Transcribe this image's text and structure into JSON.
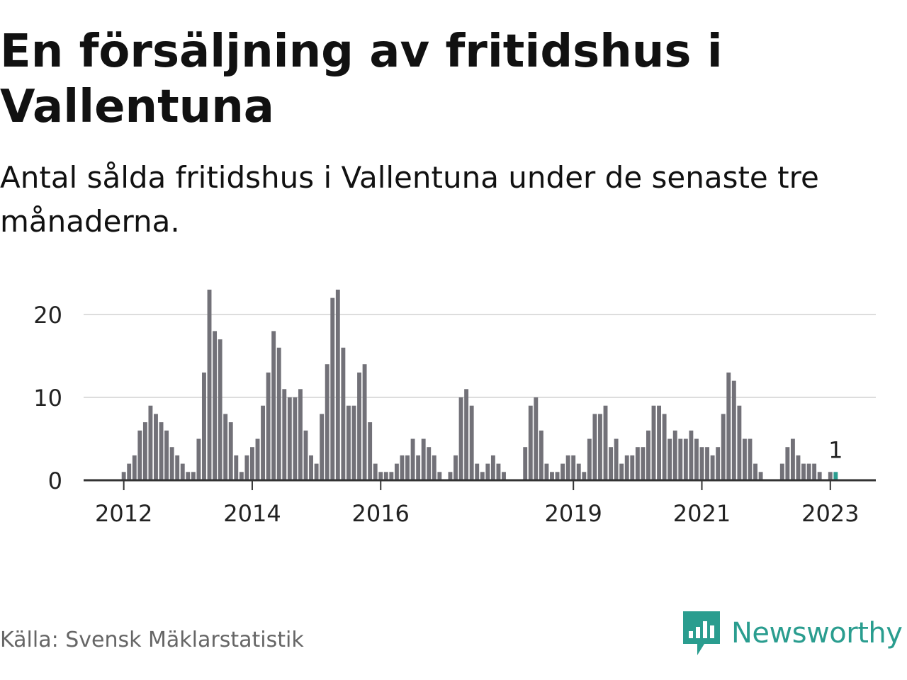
{
  "title": "En försäljning av fritidshus i Vallentuna",
  "subtitle": "Antal sålda fritidshus i Vallentuna under de senaste tre månaderna.",
  "source": "Källa: Svensk Mäklarstatistik",
  "brand": {
    "name": "Newsworthy",
    "color": "#2a9d8f",
    "icon": "newsworthy-logo-icon"
  },
  "colors": {
    "bar": "#727178",
    "highlight": "#2a9d8f",
    "grid": "#dddddd",
    "axis": "#333333"
  },
  "chart_data": {
    "type": "bar",
    "xlabel": "",
    "ylabel": "",
    "ylim": [
      0,
      23
    ],
    "grid": true,
    "yticks": [
      0,
      10,
      20
    ],
    "xticks": [
      "2012",
      "2014",
      "2016",
      "2019",
      "2021",
      "2023"
    ],
    "start": "2011-06",
    "end": "2023-09",
    "values": [
      0,
      0,
      0,
      0,
      0,
      0,
      0,
      1,
      2,
      3,
      6,
      7,
      9,
      8,
      7,
      6,
      4,
      3,
      2,
      1,
      1,
      5,
      13,
      23,
      18,
      17,
      8,
      7,
      3,
      1,
      3,
      4,
      5,
      9,
      13,
      18,
      16,
      11,
      10,
      10,
      11,
      6,
      3,
      2,
      8,
      14,
      22,
      23,
      16,
      9,
      9,
      13,
      14,
      7,
      2,
      1,
      1,
      1,
      2,
      3,
      3,
      5,
      3,
      5,
      4,
      3,
      1,
      0,
      1,
      3,
      10,
      11,
      9,
      2,
      1,
      2,
      3,
      2,
      1,
      0,
      0,
      0,
      4,
      9,
      10,
      6,
      2,
      1,
      1,
      2,
      3,
      3,
      2,
      1,
      5,
      8,
      8,
      9,
      4,
      5,
      2,
      3,
      3,
      4,
      4,
      6,
      9,
      9,
      8,
      5,
      6,
      5,
      5,
      6,
      5,
      4,
      4,
      3,
      4,
      8,
      13,
      12,
      9,
      5,
      5,
      2,
      1,
      0,
      0,
      0,
      2,
      4,
      5,
      3,
      2,
      2,
      2,
      1,
      0,
      1,
      1,
      0,
      0,
      0,
      0,
      0,
      0,
      0
    ],
    "highlight": {
      "date": "2023-02",
      "value": 1,
      "label": "1"
    }
  }
}
